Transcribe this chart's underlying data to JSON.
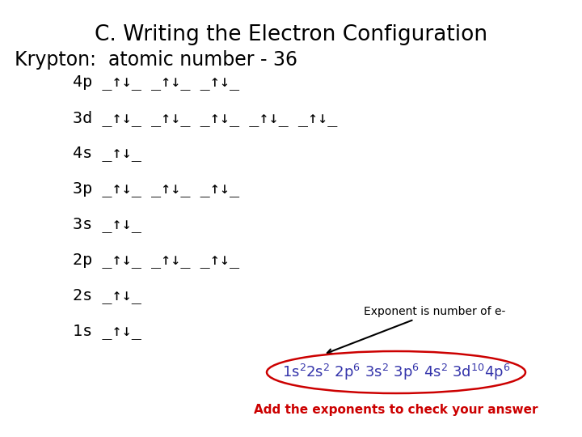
{
  "title": "C. Writing the Electron Configuration",
  "subtitle": "Krypton:  atomic number - 36",
  "bg_color": "#ffffff",
  "title_fontsize": 19,
  "subtitle_fontsize": 17,
  "body_fontsize": 14.5,
  "lines": [
    "4p _↑↓_ _↑↓_ _↑↓_",
    "3d _↑↓_ _↑↓_ _↑↓_ _↑↓_ _↑↓_",
    "4s _↑↓_",
    "3p _↑↓_ _↑↓_ _↑↓_",
    "3s _↑↓_",
    "2p _↑↓_ _↑↓_ _↑↓_",
    "2s _↑↓_",
    "1s _↑↓_"
  ],
  "config_color": "#3333aa",
  "arrow_label": "Exponent is number of e-",
  "bottom_label": "Add the exponents to check your answer",
  "bottom_label_color": "#cc0000",
  "ellipse_color": "#cc0000"
}
